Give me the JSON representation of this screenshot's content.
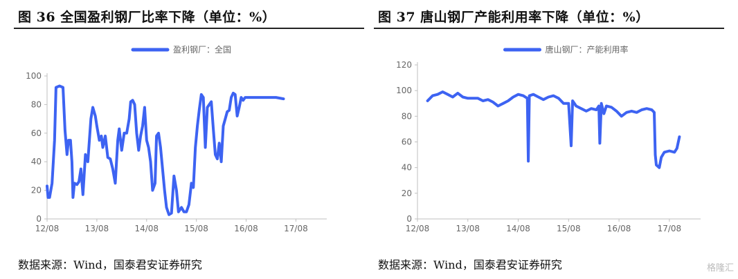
{
  "panels": [
    {
      "title": "图 36 全国盈利钢厂比率下降（单位：%）",
      "source": "数据来源：Wind，国泰君安证券研究"
    },
    {
      "title": "图 37 唐山钢厂产能利用率下降（单位：%）",
      "source": "数据来源：Wind，国泰君安证券研究"
    }
  ],
  "watermark": "格隆汇",
  "colors": {
    "series": "#3d63f2",
    "axis": "#bfbfbf",
    "text": "#666666"
  },
  "chart_data": [
    {
      "type": "line",
      "title": "",
      "xlabel": "",
      "ylabel": "",
      "ylim": [
        0,
        100
      ],
      "yticks": [
        0,
        20,
        40,
        60,
        80,
        100
      ],
      "xticks": [
        "12/08",
        "13/08",
        "14/08",
        "15/08",
        "16/08",
        "17/08"
      ],
      "grid": false,
      "legend": "top-center",
      "series": [
        {
          "name": "盈利钢厂：全国",
          "points": [
            [
              0,
              23
            ],
            [
              0.02,
              15
            ],
            [
              0.05,
              15
            ],
            [
              0.1,
              25
            ],
            [
              0.15,
              55
            ],
            [
              0.18,
              92
            ],
            [
              0.25,
              93
            ],
            [
              0.32,
              92
            ],
            [
              0.36,
              62
            ],
            [
              0.4,
              45
            ],
            [
              0.43,
              55
            ],
            [
              0.47,
              55
            ],
            [
              0.5,
              40
            ],
            [
              0.52,
              15
            ],
            [
              0.55,
              25
            ],
            [
              0.6,
              24
            ],
            [
              0.64,
              26
            ],
            [
              0.68,
              35
            ],
            [
              0.72,
              17
            ],
            [
              0.77,
              45
            ],
            [
              0.82,
              40
            ],
            [
              0.88,
              70
            ],
            [
              0.92,
              78
            ],
            [
              0.97,
              72
            ],
            [
              1.0,
              65
            ],
            [
              1.05,
              55
            ],
            [
              1.09,
              58
            ],
            [
              1.12,
              50
            ],
            [
              1.17,
              58
            ],
            [
              1.22,
              43
            ],
            [
              1.27,
              42
            ],
            [
              1.32,
              35
            ],
            [
              1.37,
              25
            ],
            [
              1.42,
              55
            ],
            [
              1.45,
              63
            ],
            [
              1.5,
              48
            ],
            [
              1.55,
              60
            ],
            [
              1.6,
              60
            ],
            [
              1.65,
              70
            ],
            [
              1.68,
              82
            ],
            [
              1.72,
              83
            ],
            [
              1.76,
              80
            ],
            [
              1.8,
              60
            ],
            [
              1.84,
              48
            ],
            [
              1.88,
              58
            ],
            [
              1.92,
              65
            ],
            [
              1.96,
              78
            ],
            [
              2.0,
              55
            ],
            [
              2.04,
              50
            ],
            [
              2.08,
              40
            ],
            [
              2.12,
              20
            ],
            [
              2.17,
              25
            ],
            [
              2.2,
              58
            ],
            [
              2.24,
              60
            ],
            [
              2.28,
              50
            ],
            [
              2.32,
              35
            ],
            [
              2.36,
              20
            ],
            [
              2.4,
              8
            ],
            [
              2.45,
              3
            ],
            [
              2.5,
              4
            ],
            [
              2.55,
              30
            ],
            [
              2.6,
              20
            ],
            [
              2.64,
              5
            ],
            [
              2.7,
              8
            ],
            [
              2.75,
              5
            ],
            [
              2.8,
              5
            ],
            [
              2.85,
              10
            ],
            [
              2.9,
              25
            ],
            [
              2.94,
              22
            ],
            [
              2.98,
              50
            ],
            [
              3.02,
              65
            ],
            [
              3.06,
              77
            ],
            [
              3.1,
              87
            ],
            [
              3.14,
              85
            ],
            [
              3.18,
              50
            ],
            [
              3.22,
              78
            ],
            [
              3.26,
              80
            ],
            [
              3.3,
              82
            ],
            [
              3.34,
              63
            ],
            [
              3.38,
              45
            ],
            [
              3.42,
              42
            ],
            [
              3.46,
              53
            ],
            [
              3.5,
              40
            ],
            [
              3.54,
              65
            ],
            [
              3.58,
              70
            ],
            [
              3.62,
              75
            ],
            [
              3.66,
              76
            ],
            [
              3.7,
              85
            ],
            [
              3.74,
              88
            ],
            [
              3.78,
              87
            ],
            [
              3.82,
              72
            ],
            [
              3.86,
              78
            ],
            [
              3.9,
              85
            ],
            [
              3.94,
              83
            ],
            [
              3.98,
              85
            ],
            [
              4.05,
              85
            ],
            [
              4.2,
              85
            ],
            [
              4.4,
              85
            ],
            [
              4.6,
              85
            ],
            [
              4.75,
              84
            ]
          ]
        }
      ]
    },
    {
      "type": "line",
      "title": "",
      "xlabel": "",
      "ylabel": "",
      "ylim": [
        0,
        120
      ],
      "yticks": [
        0,
        20,
        40,
        60,
        80,
        100,
        120
      ],
      "xticks": [
        "12/08",
        "13/08",
        "14/08",
        "15/08",
        "16/08",
        "17/08"
      ],
      "grid": false,
      "legend": "top-center",
      "series": [
        {
          "name": "唐山钢厂：产能利用率",
          "points": [
            [
              0.2,
              92
            ],
            [
              0.3,
              96
            ],
            [
              0.4,
              97
            ],
            [
              0.5,
              99
            ],
            [
              0.6,
              97
            ],
            [
              0.7,
              95
            ],
            [
              0.8,
              98
            ],
            [
              0.9,
              95
            ],
            [
              1.0,
              94
            ],
            [
              1.1,
              94
            ],
            [
              1.2,
              94
            ],
            [
              1.3,
              92
            ],
            [
              1.4,
              93
            ],
            [
              1.5,
              91
            ],
            [
              1.6,
              88
            ],
            [
              1.7,
              90
            ],
            [
              1.8,
              92
            ],
            [
              1.9,
              95
            ],
            [
              2.0,
              97
            ],
            [
              2.1,
              96
            ],
            [
              2.18,
              94
            ],
            [
              2.2,
              45
            ],
            [
              2.22,
              96
            ],
            [
              2.3,
              97
            ],
            [
              2.4,
              95
            ],
            [
              2.5,
              93
            ],
            [
              2.6,
              95
            ],
            [
              2.7,
              96
            ],
            [
              2.8,
              94
            ],
            [
              2.9,
              90
            ],
            [
              3.0,
              90
            ],
            [
              3.05,
              57
            ],
            [
              3.08,
              92
            ],
            [
              3.15,
              88
            ],
            [
              3.25,
              86
            ],
            [
              3.35,
              84
            ],
            [
              3.45,
              86
            ],
            [
              3.55,
              85
            ],
            [
              3.6,
              88
            ],
            [
              3.62,
              59
            ],
            [
              3.65,
              90
            ],
            [
              3.7,
              82
            ],
            [
              3.75,
              88
            ],
            [
              3.85,
              87
            ],
            [
              3.95,
              84
            ],
            [
              4.05,
              80
            ],
            [
              4.15,
              83
            ],
            [
              4.25,
              84
            ],
            [
              4.35,
              83
            ],
            [
              4.45,
              85
            ],
            [
              4.55,
              86
            ],
            [
              4.65,
              85
            ],
            [
              4.7,
              83
            ],
            [
              4.72,
              50
            ],
            [
              4.74,
              42
            ],
            [
              4.8,
              40
            ],
            [
              4.84,
              48
            ],
            [
              4.9,
              52
            ],
            [
              5.0,
              53
            ],
            [
              5.1,
              52
            ],
            [
              5.15,
              55
            ],
            [
              5.2,
              64
            ]
          ]
        }
      ]
    }
  ]
}
